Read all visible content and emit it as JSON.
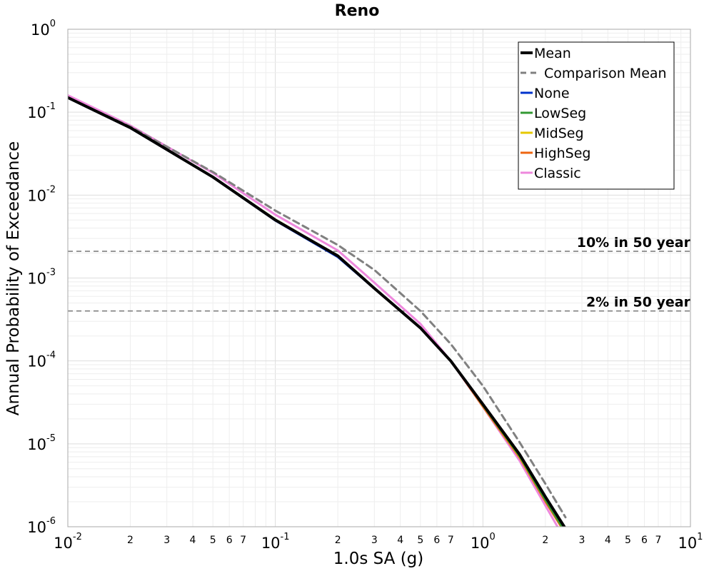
{
  "chart_data": {
    "type": "line",
    "title": "Reno",
    "xlabel": "1.0s SA (g)",
    "ylabel": "Annual Probability of Exceedance",
    "x_scale": "log",
    "y_scale": "log",
    "xlim": [
      0.01,
      10
    ],
    "ylim": [
      1e-06,
      1
    ],
    "x_major_ticks": [
      {
        "base": "10",
        "exp": "-2",
        "value": 0.01
      },
      {
        "base": "10",
        "exp": "-1",
        "value": 0.1
      },
      {
        "base": "10",
        "exp": "0",
        "value": 1
      },
      {
        "base": "10",
        "exp": "1",
        "value": 10
      }
    ],
    "x_minor_ticks": [
      {
        "label": "2",
        "value": 0.02
      },
      {
        "label": "3",
        "value": 0.03
      },
      {
        "label": "4",
        "value": 0.04
      },
      {
        "label": "5",
        "value": 0.05
      },
      {
        "label": "6",
        "value": 0.06
      },
      {
        "label": "7",
        "value": 0.07
      },
      {
        "label": "2",
        "value": 0.2
      },
      {
        "label": "3",
        "value": 0.3
      },
      {
        "label": "4",
        "value": 0.4
      },
      {
        "label": "5",
        "value": 0.5
      },
      {
        "label": "6",
        "value": 0.6
      },
      {
        "label": "7",
        "value": 0.7
      },
      {
        "label": "2",
        "value": 2
      },
      {
        "label": "3",
        "value": 3
      },
      {
        "label": "4",
        "value": 4
      },
      {
        "label": "5",
        "value": 5
      },
      {
        "label": "6",
        "value": 6
      },
      {
        "label": "7",
        "value": 7
      }
    ],
    "y_major_ticks": [
      {
        "base": "10",
        "exp": "0",
        "value": 1
      },
      {
        "base": "10",
        "exp": "-1",
        "value": 0.1
      },
      {
        "base": "10",
        "exp": "-2",
        "value": 0.01
      },
      {
        "base": "10",
        "exp": "-3",
        "value": 0.001
      },
      {
        "base": "10",
        "exp": "-4",
        "value": 0.0001
      },
      {
        "base": "10",
        "exp": "-5",
        "value": 1e-05
      },
      {
        "base": "10",
        "exp": "-6",
        "value": 1e-06
      }
    ],
    "grid": true,
    "legend_position": "top-right",
    "reference_lines": [
      {
        "label": "10% in 50 year",
        "y": 0.0021,
        "color": "#808080"
      },
      {
        "label": "2% in 50 year",
        "y": 0.0004,
        "color": "#808080"
      }
    ],
    "series": [
      {
        "name": "Mean",
        "color": "#000000",
        "style": "solid",
        "width": 4,
        "x": [
          0.01,
          0.02,
          0.05,
          0.1,
          0.2,
          0.3,
          0.5,
          0.7,
          1.0,
          1.5,
          2.0,
          2.5
        ],
        "y": [
          0.15,
          0.065,
          0.0165,
          0.005,
          0.00185,
          0.00075,
          0.00025,
          0.0001,
          3e-05,
          7.5e-06,
          2.3e-06,
          9.5e-07
        ]
      },
      {
        "name": "Comparison Mean",
        "color": "#808080",
        "style": "dashed",
        "width": 3,
        "x": [
          0.01,
          0.02,
          0.05,
          0.1,
          0.2,
          0.3,
          0.5,
          0.7,
          1.0,
          1.5,
          2.0,
          2.5
        ],
        "y": [
          0.15,
          0.067,
          0.019,
          0.0065,
          0.0025,
          0.00125,
          0.0004,
          0.00016,
          5e-05,
          1.05e-05,
          3.3e-06,
          1.3e-06
        ]
      },
      {
        "name": "None",
        "color": "#0033cc",
        "style": "solid",
        "width": 2.5,
        "x": [
          0.01,
          0.02,
          0.05,
          0.1,
          0.2,
          0.3,
          0.5,
          0.7,
          1.0,
          1.5,
          2.0,
          2.5
        ],
        "y": [
          0.148,
          0.064,
          0.0163,
          0.0049,
          0.00178,
          0.00074,
          0.00025,
          0.0001,
          3e-05,
          7.5e-06,
          2.3e-06,
          9.5e-07
        ]
      },
      {
        "name": "LowSeg",
        "color": "#339933",
        "style": "solid",
        "width": 2.5,
        "x": [
          0.01,
          0.02,
          0.05,
          0.1,
          0.2,
          0.3,
          0.5,
          0.7,
          1.0,
          1.5,
          2.0,
          2.5
        ],
        "y": [
          0.15,
          0.065,
          0.0166,
          0.0051,
          0.00186,
          0.00076,
          0.00025,
          0.0001,
          2.9e-05,
          7.1e-06,
          2.1e-06,
          8.5e-07
        ]
      },
      {
        "name": "MidSeg",
        "color": "#e6c800",
        "style": "solid",
        "width": 2.5,
        "x": [
          0.01,
          0.02,
          0.05,
          0.1,
          0.2,
          0.3,
          0.5,
          0.7,
          1.0,
          1.5,
          2.0,
          2.5
        ],
        "y": [
          0.15,
          0.065,
          0.0166,
          0.0051,
          0.00186,
          0.00076,
          0.00025,
          0.0001,
          2.9e-05,
          7e-06,
          2.1e-06,
          8.5e-07
        ]
      },
      {
        "name": "HighSeg",
        "color": "#ee6611",
        "style": "solid",
        "width": 2.5,
        "x": [
          0.01,
          0.02,
          0.05,
          0.1,
          0.2,
          0.3,
          0.5,
          0.7,
          1.0,
          1.5,
          2.0,
          2.5
        ],
        "y": [
          0.15,
          0.065,
          0.0166,
          0.0051,
          0.00186,
          0.00076,
          0.00025,
          0.0001,
          2.8e-05,
          6.8e-06,
          2e-06,
          8.2e-07
        ]
      },
      {
        "name": "Classic",
        "color": "#ee88dd",
        "style": "solid",
        "width": 3,
        "x": [
          0.01,
          0.02,
          0.05,
          0.1,
          0.2,
          0.3,
          0.5,
          0.7,
          1.0,
          1.5,
          2.0,
          2.5
        ],
        "y": [
          0.16,
          0.069,
          0.0185,
          0.0058,
          0.00215,
          0.00088,
          0.00028,
          0.0001,
          2.8e-05,
          6.3e-06,
          1.8e-06,
          6.8e-07
        ]
      }
    ]
  }
}
